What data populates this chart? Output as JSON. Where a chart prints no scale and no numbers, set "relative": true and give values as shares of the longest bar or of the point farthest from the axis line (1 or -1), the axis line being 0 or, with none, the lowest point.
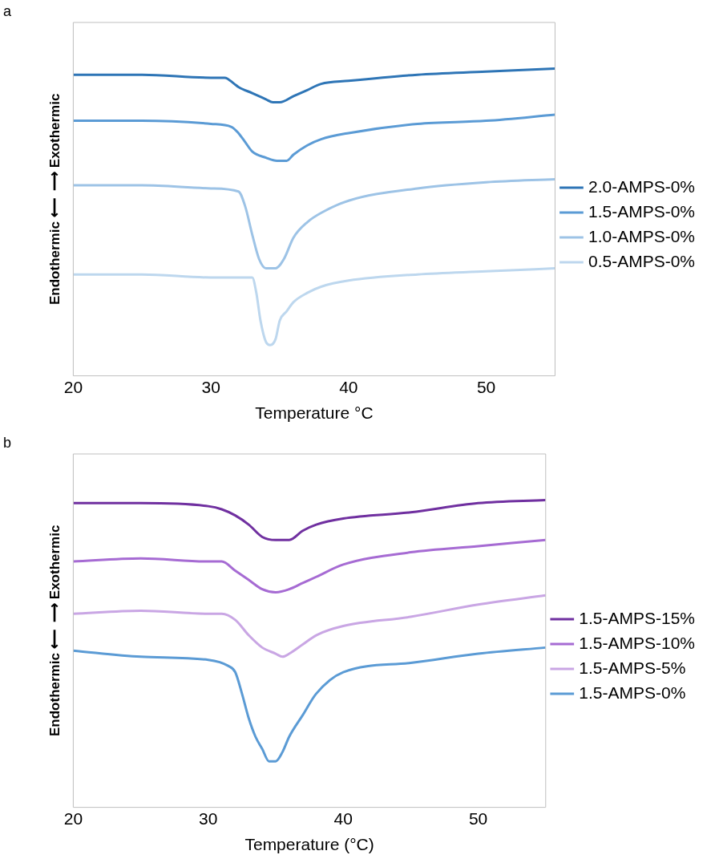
{
  "chart_data": [
    {
      "type": "line",
      "relative": true,
      "xlabel": "Temperature °C",
      "ylabel": "Endothermic ⟵  ⟶ Exothermic",
      "annotations": [
        "a"
      ],
      "legend": "right",
      "xlim": [
        20,
        55
      ],
      "xticks": [
        20,
        30,
        40,
        50
      ],
      "marker": "none",
      "series": [
        {
          "name": "2.0-AMPS-0%",
          "color": "#2e75b6",
          "x": [
            20,
            25,
            30,
            31,
            31.7,
            32,
            33,
            34,
            34.5,
            35,
            36,
            37,
            38,
            40,
            45,
            50,
            55
          ],
          "values": [
            0.98,
            0.98,
            0.97,
            0.97,
            0.95,
            0.94,
            0.92,
            0.9,
            0.89,
            0.89,
            0.91,
            0.93,
            0.95,
            0.96,
            0.98,
            0.99,
            1
          ]
        },
        {
          "name": "1.5-AMPS-0%",
          "color": "#5b9bd5",
          "x": [
            20,
            25,
            30,
            31.5,
            32,
            32.5,
            33,
            34,
            34.8,
            35.5,
            36,
            37,
            38,
            40,
            45,
            50,
            55
          ],
          "values": [
            0.83,
            0.83,
            0.82,
            0.81,
            0.79,
            0.76,
            0.73,
            0.71,
            0.7,
            0.7,
            0.72,
            0.75,
            0.77,
            0.79,
            0.82,
            0.83,
            0.85
          ]
        },
        {
          "name": "1.0-AMPS-0%",
          "color": "#9dc3e6",
          "x": [
            20,
            25,
            30,
            32,
            32.5,
            33,
            33.5,
            34,
            34.7,
            35.3,
            36,
            37,
            38,
            40,
            45,
            50,
            55
          ],
          "values": [
            0.62,
            0.62,
            0.61,
            0.6,
            0.55,
            0.46,
            0.38,
            0.35,
            0.35,
            0.38,
            0.45,
            0.5,
            0.53,
            0.57,
            0.61,
            0.63,
            0.64
          ]
        },
        {
          "name": "0.5-AMPS-0%",
          "color": "#bdd7ee",
          "x": [
            20,
            25,
            30,
            33,
            33.3,
            33.6,
            34,
            34.3,
            34.7,
            35,
            35.5,
            36,
            37,
            38,
            40,
            45,
            50,
            55
          ],
          "values": [
            0.33,
            0.33,
            0.32,
            0.32,
            0.27,
            0.18,
            0.11,
            0.1,
            0.12,
            0.18,
            0.21,
            0.24,
            0.27,
            0.29,
            0.31,
            0.33,
            0.34,
            0.35
          ]
        }
      ]
    },
    {
      "type": "line",
      "relative": true,
      "xlabel": "Temperature (°C)",
      "ylabel": "Endothermic ⟵  ⟶ Exothermic",
      "annotations": [
        "b"
      ],
      "legend": "right",
      "xlim": [
        20,
        55
      ],
      "xticks": [
        20,
        30,
        40,
        50
      ],
      "marker": "none",
      "series": [
        {
          "name": "1.5-AMPS-15%",
          "color": "#7030a0",
          "x": [
            20,
            25,
            30,
            31,
            32,
            33,
            34,
            35,
            35.5,
            36,
            37,
            38,
            40,
            45,
            50,
            55
          ],
          "values": [
            0.99,
            0.99,
            0.98,
            0.97,
            0.95,
            0.92,
            0.88,
            0.87,
            0.87,
            0.87,
            0.9,
            0.92,
            0.94,
            0.96,
            0.99,
            1
          ]
        },
        {
          "name": "1.5-AMPS-10%",
          "color": "#a66bd3",
          "x": [
            20,
            25,
            30,
            31,
            32,
            33,
            34,
            35,
            36,
            37,
            38,
            40,
            45,
            50,
            55
          ],
          "values": [
            0.8,
            0.81,
            0.8,
            0.8,
            0.77,
            0.74,
            0.71,
            0.7,
            0.71,
            0.73,
            0.75,
            0.79,
            0.83,
            0.85,
            0.87
          ]
        },
        {
          "name": "1.5-AMPS-5%",
          "color": "#c9a6e4",
          "x": [
            20,
            25,
            30,
            31,
            32,
            33,
            34,
            35,
            35.5,
            36,
            37,
            38,
            40,
            45,
            50,
            55
          ],
          "values": [
            0.63,
            0.64,
            0.63,
            0.63,
            0.61,
            0.56,
            0.52,
            0.5,
            0.49,
            0.5,
            0.53,
            0.56,
            0.59,
            0.62,
            0.66,
            0.69
          ]
        },
        {
          "name": "1.5-AMPS-0%",
          "color": "#5b9bd5",
          "x": [
            20,
            25,
            30,
            31.5,
            32,
            32.5,
            33,
            33.5,
            34,
            34.5,
            35,
            35.5,
            36,
            37,
            38,
            40,
            45,
            50,
            55
          ],
          "values": [
            0.51,
            0.49,
            0.48,
            0.46,
            0.44,
            0.37,
            0.29,
            0.23,
            0.19,
            0.15,
            0.15,
            0.18,
            0.23,
            0.3,
            0.37,
            0.44,
            0.47,
            0.5,
            0.52
          ]
        }
      ]
    }
  ]
}
